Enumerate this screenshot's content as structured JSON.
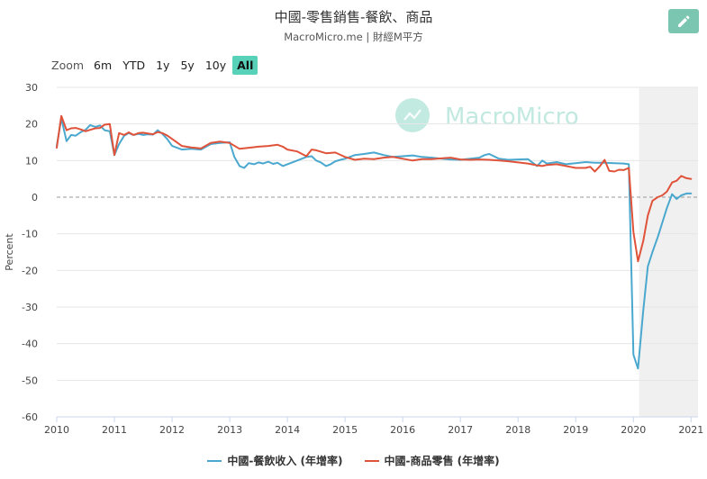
{
  "title": "中國-零售銷售-餐飲、商品",
  "subtitle": "MacroMicro.me | 財經M平方",
  "watermark": "MacroMicro",
  "edit_icon": "pencil-icon",
  "zoom": {
    "label": "Zoom",
    "options": [
      "6m",
      "YTD",
      "1y",
      "5y",
      "10y",
      "All"
    ],
    "active": "All"
  },
  "colors": {
    "series_catering": "#4aa8cf",
    "series_goods": "#e0533b",
    "grid": "#e6e6e6",
    "zero_line": "#999999",
    "forecast_band": "#f0f0f0",
    "accent": "#57d2b8",
    "watermark": "#8fd8c8"
  },
  "chart_data": {
    "type": "line",
    "title": "中國-零售銷售-餐飲、商品",
    "xlabel": "",
    "ylabel": "Percent",
    "ylim": [
      -60,
      30
    ],
    "xlim": [
      2010.0,
      2021.12
    ],
    "yticks": [
      30,
      20,
      10,
      0,
      -10,
      -20,
      -30,
      -40,
      -50,
      -60
    ],
    "xticks": [
      2010,
      2011,
      2012,
      2013,
      2014,
      2015,
      2016,
      2017,
      2018,
      2019,
      2020,
      2021
    ],
    "shaded_from": 2020.1,
    "zero_line": "dashed",
    "legend_position": "bottom",
    "series": [
      {
        "name": "中國-餐飲收入 (年增率)",
        "color": "#4aa8cf",
        "x": [
          2010.0,
          2010.08,
          2010.17,
          2010.25,
          2010.33,
          2010.42,
          2010.5,
          2010.58,
          2010.67,
          2010.75,
          2010.83,
          2010.92,
          2011.0,
          2011.08,
          2011.17,
          2011.25,
          2011.33,
          2011.42,
          2011.5,
          2011.58,
          2011.67,
          2011.75,
          2011.83,
          2011.92,
          2012.0,
          2012.17,
          2012.33,
          2012.5,
          2012.67,
          2012.83,
          2013.0,
          2013.08,
          2013.17,
          2013.25,
          2013.33,
          2013.42,
          2013.5,
          2013.58,
          2013.67,
          2013.75,
          2013.83,
          2013.92,
          2014.0,
          2014.17,
          2014.33,
          2014.42,
          2014.5,
          2014.58,
          2014.67,
          2014.75,
          2014.83,
          2014.92,
          2015.0,
          2015.17,
          2015.33,
          2015.5,
          2015.67,
          2015.83,
          2016.0,
          2016.17,
          2016.33,
          2016.5,
          2016.67,
          2016.83,
          2017.0,
          2017.17,
          2017.33,
          2017.42,
          2017.5,
          2017.67,
          2017.83,
          2018.0,
          2018.17,
          2018.33,
          2018.42,
          2018.5,
          2018.67,
          2018.83,
          2019.0,
          2019.17,
          2019.33,
          2019.5,
          2019.67,
          2019.83,
          2019.92,
          2020.0,
          2020.08,
          2020.17,
          2020.25,
          2020.33,
          2020.42,
          2020.5,
          2020.58,
          2020.67,
          2020.75,
          2020.83,
          2020.92,
          2021.0
        ],
        "values": [
          14.0,
          21.5,
          15.3,
          17.0,
          16.8,
          17.8,
          18.4,
          19.7,
          19.2,
          19.6,
          18.3,
          18.0,
          11.5,
          14.5,
          16.8,
          17.5,
          17.0,
          17.3,
          17.0,
          17.2,
          17.1,
          18.3,
          17.3,
          15.8,
          14.0,
          13.0,
          13.2,
          13.0,
          14.5,
          14.8,
          15.0,
          11.0,
          8.5,
          8.0,
          9.3,
          9.0,
          9.5,
          9.2,
          9.7,
          9.1,
          9.4,
          8.5,
          9.0,
          10.0,
          11.0,
          11.2,
          10.0,
          9.5,
          8.5,
          9.0,
          9.8,
          10.2,
          10.5,
          11.5,
          11.8,
          12.2,
          11.5,
          11.0,
          11.2,
          11.4,
          11.0,
          10.8,
          10.5,
          10.3,
          10.2,
          10.5,
          10.8,
          11.5,
          11.8,
          10.5,
          10.2,
          10.3,
          10.4,
          8.5,
          10.0,
          9.2,
          9.6,
          9.0,
          9.3,
          9.6,
          9.4,
          9.4,
          9.3,
          9.2,
          9.0,
          -43.0,
          -46.8,
          -31.0,
          -18.9,
          -15.0,
          -11.0,
          -7.0,
          -3.0,
          0.8,
          -0.5,
          0.5,
          1.0,
          1.0
        ]
      },
      {
        "name": "中國-商品零售 (年增率)",
        "color": "#e0533b",
        "x": [
          2010.0,
          2010.08,
          2010.17,
          2010.25,
          2010.33,
          2010.42,
          2010.5,
          2010.58,
          2010.67,
          2010.75,
          2010.83,
          2010.92,
          2011.0,
          2011.08,
          2011.17,
          2011.25,
          2011.33,
          2011.42,
          2011.5,
          2011.58,
          2011.67,
          2011.75,
          2011.83,
          2011.92,
          2012.0,
          2012.17,
          2012.33,
          2012.5,
          2012.67,
          2012.83,
          2013.0,
          2013.17,
          2013.33,
          2013.5,
          2013.67,
          2013.83,
          2013.92,
          2014.0,
          2014.17,
          2014.33,
          2014.42,
          2014.5,
          2014.67,
          2014.83,
          2015.0,
          2015.17,
          2015.33,
          2015.5,
          2015.67,
          2015.83,
          2016.0,
          2016.17,
          2016.33,
          2016.5,
          2016.67,
          2016.83,
          2017.0,
          2017.17,
          2017.33,
          2017.5,
          2017.67,
          2017.83,
          2018.0,
          2018.17,
          2018.33,
          2018.42,
          2018.5,
          2018.67,
          2018.83,
          2019.0,
          2019.17,
          2019.25,
          2019.33,
          2019.42,
          2019.5,
          2019.58,
          2019.67,
          2019.75,
          2019.83,
          2019.92,
          2020.0,
          2020.08,
          2020.17,
          2020.25,
          2020.33,
          2020.42,
          2020.5,
          2020.58,
          2020.67,
          2020.75,
          2020.83,
          2020.92,
          2021.0
        ],
        "values": [
          13.5,
          22.2,
          18.3,
          18.8,
          18.9,
          18.5,
          18.0,
          18.4,
          18.8,
          18.9,
          19.8,
          20.0,
          11.5,
          17.5,
          17.0,
          17.7,
          17.0,
          17.5,
          17.6,
          17.4,
          17.2,
          17.8,
          17.5,
          16.8,
          15.9,
          14.0,
          13.6,
          13.3,
          14.8,
          15.2,
          14.8,
          13.2,
          13.5,
          13.8,
          14.0,
          14.3,
          13.8,
          13.0,
          12.5,
          11.2,
          13.0,
          12.8,
          12.0,
          12.2,
          11.0,
          10.2,
          10.5,
          10.4,
          10.8,
          11.0,
          10.5,
          10.0,
          10.4,
          10.4,
          10.6,
          10.8,
          10.3,
          10.2,
          10.3,
          10.2,
          10.0,
          9.8,
          9.5,
          9.2,
          8.7,
          8.5,
          8.8,
          9.0,
          8.5,
          8.0,
          8.0,
          8.3,
          7.0,
          8.5,
          10.2,
          7.2,
          7.0,
          7.5,
          7.4,
          8.0,
          -9.5,
          -17.5,
          -12.0,
          -5.0,
          -1.0,
          0.0,
          0.5,
          1.5,
          4.0,
          4.5,
          5.8,
          5.2,
          5.0
        ]
      }
    ]
  }
}
